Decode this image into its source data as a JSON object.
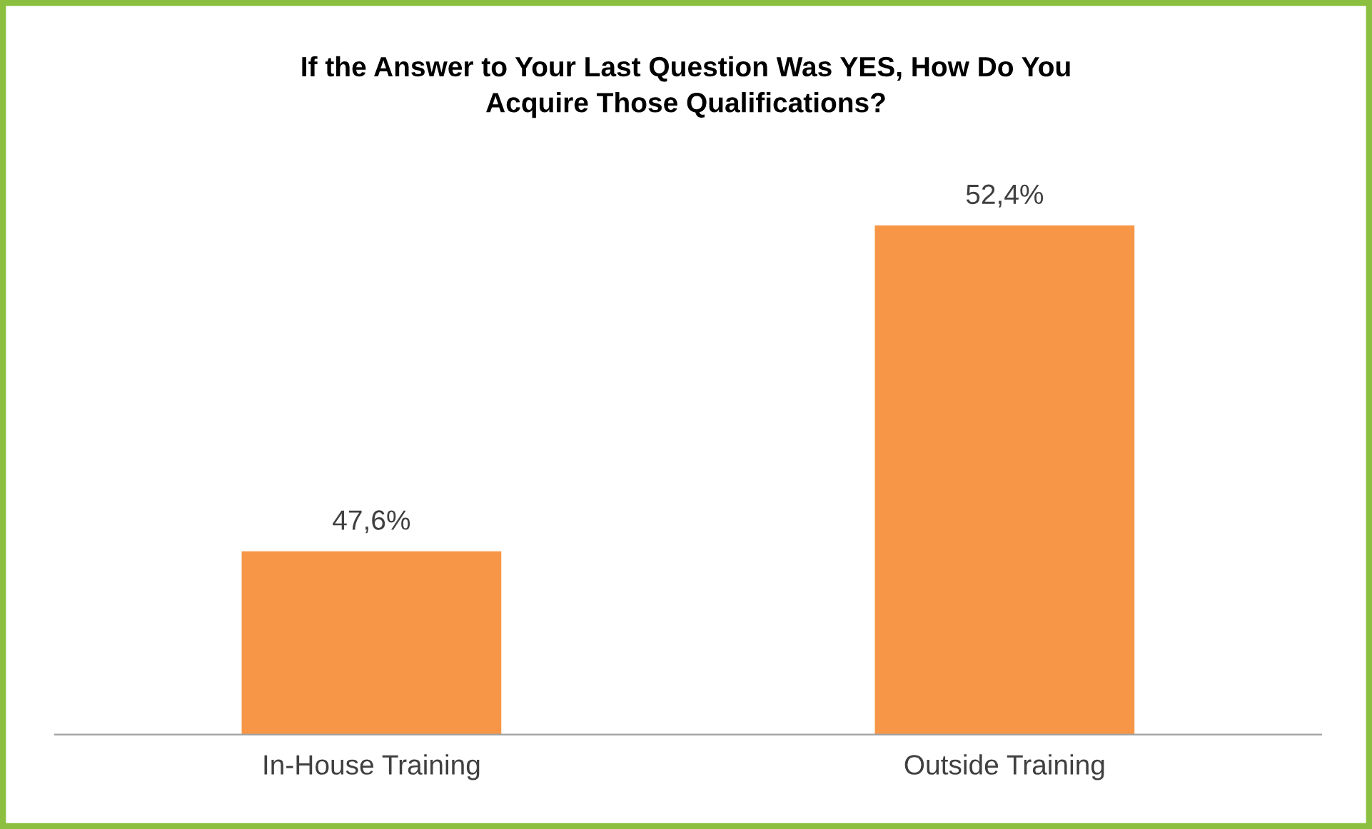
{
  "chart_data": {
    "type": "bar",
    "title": "If the Answer to Your Last Question Was YES, How Do You\nAcquire Those Qualifications?",
    "categories": [
      "In-House Training",
      "Outside Training"
    ],
    "values": [
      47.6,
      52.4
    ],
    "value_labels": [
      "47,6%",
      "52,4%"
    ],
    "color": "#f79646",
    "ylim": [
      44.9,
      52.4
    ],
    "tick_labels": "x",
    "grid": false,
    "legend": false
  }
}
